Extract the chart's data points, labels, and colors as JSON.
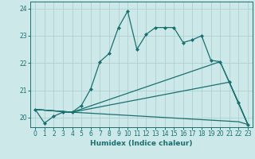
{
  "xlabel": "Humidex (Indice chaleur)",
  "xlim": [
    -0.5,
    23.5
  ],
  "ylim": [
    19.65,
    24.25
  ],
  "yticks": [
    20,
    21,
    22,
    23,
    24
  ],
  "xticks": [
    0,
    1,
    2,
    3,
    4,
    5,
    6,
    7,
    8,
    9,
    10,
    11,
    12,
    13,
    14,
    15,
    16,
    17,
    18,
    19,
    20,
    21,
    22,
    23
  ],
  "bg_color": "#cce8e8",
  "line_color": "#1a7070",
  "grid_color": "#aacccc",
  "lines": [
    {
      "x": [
        0,
        1,
        2,
        3,
        4,
        5,
        6,
        7,
        8,
        9,
        10,
        11,
        12,
        13,
        14,
        15,
        16,
        17,
        18,
        19,
        20,
        21,
        22,
        23
      ],
      "y": [
        20.3,
        19.8,
        20.05,
        20.2,
        20.2,
        20.45,
        21.05,
        22.05,
        22.35,
        23.3,
        23.9,
        22.5,
        23.05,
        23.3,
        23.3,
        23.3,
        22.75,
        22.85,
        23.0,
        22.1,
        22.05,
        21.3,
        20.55,
        19.75
      ],
      "marker": "D",
      "markersize": 2.0,
      "linewidth": 0.9,
      "has_marker": true
    },
    {
      "x": [
        0,
        4,
        20,
        23
      ],
      "y": [
        20.3,
        20.2,
        22.05,
        19.75
      ],
      "marker": null,
      "markersize": 0,
      "linewidth": 0.9,
      "has_marker": false
    },
    {
      "x": [
        0,
        4,
        21,
        23
      ],
      "y": [
        20.3,
        20.2,
        21.3,
        19.75
      ],
      "marker": null,
      "markersize": 0,
      "linewidth": 0.9,
      "has_marker": false
    },
    {
      "x": [
        0,
        4,
        22,
        23
      ],
      "y": [
        20.3,
        20.2,
        19.85,
        19.75
      ],
      "marker": null,
      "markersize": 0,
      "linewidth": 0.9,
      "has_marker": false
    }
  ]
}
